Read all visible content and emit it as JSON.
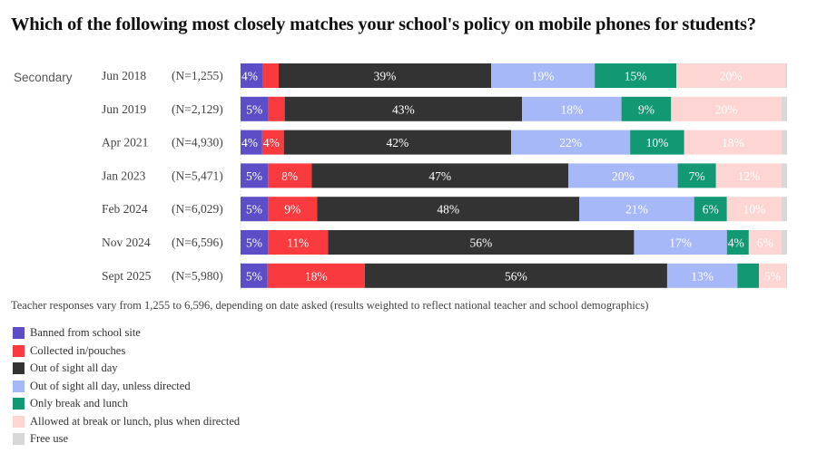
{
  "chart_data": {
    "type": "bar",
    "orientation": "horizontal",
    "stacked": true,
    "normalized": true,
    "title": "Which of the following most closely matches your school's policy on mobile phones for students?",
    "group_label": "Secondary",
    "categories": [
      "Jun 2018",
      "Jun 2019",
      "Apr 2021",
      "Jan 2023",
      "Feb 2024",
      "Nov 2024",
      "Sept 2025"
    ],
    "sample_sizes": [
      "(N=1,255)",
      "(N=2,129)",
      "(N=4,930)",
      "(N=5,471)",
      "(N=6,029)",
      "(N=6,596)",
      "(N=5,980)"
    ],
    "series": [
      {
        "name": "Banned from school site",
        "color": "#5b4ec6",
        "label_color": "#ffffff",
        "values": [
          4,
          5,
          4,
          5,
          5,
          5,
          5
        ],
        "labels": [
          "4%",
          "5%",
          "4%",
          "5%",
          "5%",
          "5%",
          "5%"
        ]
      },
      {
        "name": "Collected in/pouches",
        "color": "#f93a3f",
        "label_color": "#ffffff",
        "values": [
          3,
          3,
          4,
          8,
          9,
          11,
          18
        ],
        "labels": [
          "",
          "",
          "4%",
          "8%",
          "9%",
          "11%",
          "18%"
        ]
      },
      {
        "name": "Out of sight all day",
        "color": "#333333",
        "label_color": "#ffffff",
        "values": [
          39,
          43,
          42,
          47,
          48,
          56,
          56
        ],
        "labels": [
          "39%",
          "43%",
          "42%",
          "47%",
          "48%",
          "56%",
          "56%"
        ]
      },
      {
        "name": "Out of sight all day, unless directed",
        "color": "#a7b8f8",
        "label_color": "#ffffff",
        "values": [
          19,
          18,
          22,
          20,
          21,
          17,
          13
        ],
        "labels": [
          "19%",
          "18%",
          "22%",
          "20%",
          "21%",
          "17%",
          "13%"
        ]
      },
      {
        "name": "Only break and lunch",
        "color": "#139874",
        "label_color": "#ffffff",
        "values": [
          15,
          9,
          10,
          7,
          6,
          4,
          4
        ],
        "labels": [
          "15%",
          "9%",
          "10%",
          "7%",
          "6%",
          "4%",
          ""
        ]
      },
      {
        "name": "Allowed at break or lunch, plus when directed",
        "color": "#fdd5d3",
        "label_color": "#ffffff",
        "values": [
          20,
          20,
          18,
          12,
          10,
          6,
          5
        ],
        "labels": [
          "20%",
          "20%",
          "18%",
          "12%",
          "10%",
          "6%",
          "5%"
        ]
      },
      {
        "name": "Free use",
        "color": "#d8d8d8",
        "label_color": "#ffffff",
        "values": [
          0.3,
          1,
          1,
          1,
          1,
          1,
          0.2
        ],
        "labels": [
          "",
          "",
          "",
          "",
          "",
          "",
          ""
        ]
      }
    ],
    "xlim": [
      0,
      100
    ],
    "grid": false,
    "legend_position": "bottom-left",
    "footnote": "Teacher responses vary from 1,255 to 6,596, depending on date asked (results weighted to reflect national teacher and school demographics)"
  }
}
